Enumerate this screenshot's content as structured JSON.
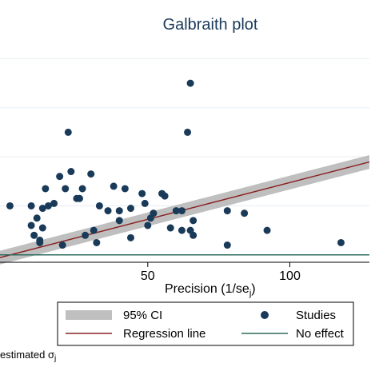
{
  "chart_data": {
    "type": "scatter",
    "title": "Galbraith plot",
    "xlabel": "Precision (1/se",
    "xlabel_sub": "j",
    "xlabel_close": ")",
    "ylabel": "",
    "xlim": [
      -2,
      128
    ],
    "ylim": [
      -0.3,
      8.6
    ],
    "x_ticks": [
      50,
      100
    ],
    "y_grid": [
      0,
      2,
      4,
      6,
      8
    ],
    "grid": true,
    "ci_band": {
      "slope": 0.03,
      "intercept": -0.05,
      "half_width": 0.28
    },
    "regression": {
      "slope": 0.03,
      "intercept": -0.05
    },
    "no_effect": 0,
    "points": [
      [
        1.5,
        2.0
      ],
      [
        9,
        2.0
      ],
      [
        9,
        1.2
      ],
      [
        10,
        0.8
      ],
      [
        11,
        1.5
      ],
      [
        12,
        0.6
      ],
      [
        12,
        0.5
      ],
      [
        13,
        1.9
      ],
      [
        13,
        1.1
      ],
      [
        14,
        2.7
      ],
      [
        15,
        2.0
      ],
      [
        17,
        2.1
      ],
      [
        19,
        3.2
      ],
      [
        20,
        0.4
      ],
      [
        21,
        2.7
      ],
      [
        22,
        5.0
      ],
      [
        23,
        3.4
      ],
      [
        25,
        2.3
      ],
      [
        26,
        2.3
      ],
      [
        27,
        2.7
      ],
      [
        28,
        0.8
      ],
      [
        30,
        3.3
      ],
      [
        31,
        1.0
      ],
      [
        32,
        0.5
      ],
      [
        33,
        2.0
      ],
      [
        36,
        1.8
      ],
      [
        38,
        2.8
      ],
      [
        40,
        1.8
      ],
      [
        40,
        1.4
      ],
      [
        42,
        2.7
      ],
      [
        44,
        1.9
      ],
      [
        44,
        0.7
      ],
      [
        48,
        2.5
      ],
      [
        49,
        2.1
      ],
      [
        50,
        1.2
      ],
      [
        51,
        1.5
      ],
      [
        52,
        1.7
      ],
      [
        55,
        2.5
      ],
      [
        56,
        2.4
      ],
      [
        58,
        1.1
      ],
      [
        60,
        1.8
      ],
      [
        62,
        1.8
      ],
      [
        62,
        1.0
      ],
      [
        64,
        5.0
      ],
      [
        65,
        1.0
      ],
      [
        65,
        7.0
      ],
      [
        66,
        0.8
      ],
      [
        66,
        1.4
      ],
      [
        78,
        1.8
      ],
      [
        78,
        0.4
      ],
      [
        84,
        1.7
      ],
      [
        92,
        1.0
      ],
      [
        118,
        0.5
      ]
    ],
    "legend": {
      "ci": "95% CI",
      "studies": "Studies",
      "regression": "Regression line",
      "no_effect": "No effect"
    },
    "note": "estimated σ",
    "note_sub": "j"
  },
  "colors": {
    "title": "#1a3a5a",
    "points": "#1a3a5a",
    "regression": "#8b2323",
    "no_effect": "#2e6b5c",
    "ci": "#bfbfbf",
    "grid": "#e6eef2"
  }
}
